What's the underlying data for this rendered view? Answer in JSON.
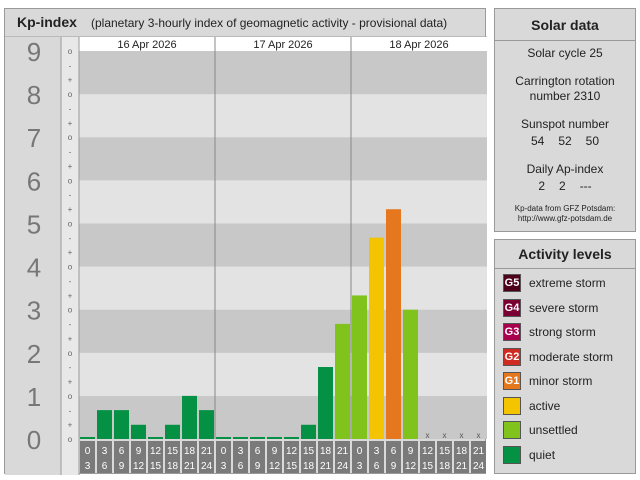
{
  "header": {
    "title": "Kp-index",
    "subtitle": "(planetary 3-hourly index of geomagnetic activity - provisional data)"
  },
  "kp_axis": {
    "labels": [
      "0",
      "1",
      "2",
      "3",
      "4",
      "5",
      "6",
      "7",
      "8",
      "9"
    ],
    "minor_marks": [
      "o",
      "+",
      "-"
    ]
  },
  "days": [
    {
      "label": "16 Apr 2026"
    },
    {
      "label": "17 Apr 2026"
    },
    {
      "label": "18 Apr 2026"
    }
  ],
  "hour_labels": [
    {
      "start": "0",
      "end": "3"
    },
    {
      "start": "3",
      "end": "6"
    },
    {
      "start": "6",
      "end": "9"
    },
    {
      "start": "9",
      "end": "12"
    },
    {
      "start": "12",
      "end": "15"
    },
    {
      "start": "15",
      "end": "18"
    },
    {
      "start": "18",
      "end": "21"
    },
    {
      "start": "21",
      "end": "24"
    }
  ],
  "chart_data": {
    "type": "bar",
    "title": "Kp-index",
    "ylim": [
      0,
      9
    ],
    "unavailable_mark": "x",
    "kp_values": [
      0.0,
      0.67,
      0.67,
      0.33,
      0.0,
      0.33,
      1.0,
      0.67,
      0.0,
      0.0,
      0.0,
      0.0,
      0.0,
      0.33,
      1.67,
      2.67,
      3.33,
      4.67,
      5.33,
      3.0,
      null,
      null,
      null,
      null
    ]
  },
  "solar": {
    "title": "Solar data",
    "cycle": "Solar cycle 25",
    "carrington_line1": "Carrington rotation",
    "carrington_line2": "number 2310",
    "sunspot_title": "Sunspot number",
    "sunspot_values": [
      "54",
      "52",
      "50"
    ],
    "ap_title": "Daily Ap-index",
    "ap_values": [
      "2",
      "2",
      "---"
    ],
    "source_line1": "Kp-data from GFZ Potsdam:",
    "source_line2": "http://www.gfz-potsdam.de"
  },
  "levels": {
    "title": "Activity levels",
    "items": [
      {
        "badge": "G5",
        "label": "extreme storm",
        "color": "#4d0019"
      },
      {
        "badge": "G4",
        "label": "severe storm",
        "color": "#7a0033"
      },
      {
        "badge": "G3",
        "label": "strong storm",
        "color": "#a8004f"
      },
      {
        "badge": "G2",
        "label": "moderate storm",
        "color": "#d02b20"
      },
      {
        "badge": "G1",
        "label": "minor storm",
        "color": "#e5771e"
      },
      {
        "badge": "",
        "label": "active",
        "color": "#f5c400"
      },
      {
        "badge": "",
        "label": "unsettled",
        "color": "#80c31c"
      },
      {
        "badge": "",
        "label": "quiet",
        "color": "#059144"
      }
    ]
  }
}
